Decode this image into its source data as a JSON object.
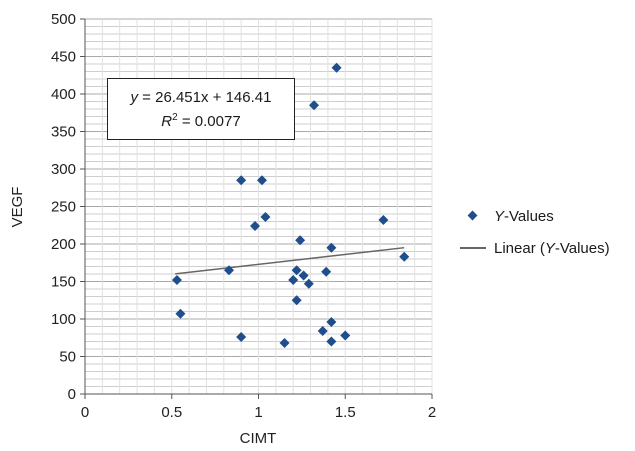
{
  "chart_data": {
    "type": "scatter",
    "xlabel": "CIMT",
    "ylabel": "VEGF",
    "xlim": [
      0,
      2
    ],
    "ylim": [
      0,
      500
    ],
    "x_ticks": [
      "0",
      "0.5",
      "1",
      "1.5",
      "2"
    ],
    "y_ticks": [
      "0",
      "50",
      "100",
      "150",
      "200",
      "250",
      "300",
      "350",
      "400",
      "450",
      "500"
    ],
    "grid": "horizontal",
    "legend_position": "right",
    "series": [
      {
        "name": "Y-Values",
        "marker": "diamond",
        "color": "#1f4e8c",
        "points": [
          {
            "x": 0.53,
            "y": 152
          },
          {
            "x": 0.55,
            "y": 107
          },
          {
            "x": 0.83,
            "y": 165
          },
          {
            "x": 0.9,
            "y": 285
          },
          {
            "x": 0.9,
            "y": 76
          },
          {
            "x": 0.98,
            "y": 224
          },
          {
            "x": 1.02,
            "y": 285
          },
          {
            "x": 1.04,
            "y": 236
          },
          {
            "x": 1.15,
            "y": 68
          },
          {
            "x": 1.2,
            "y": 152
          },
          {
            "x": 1.22,
            "y": 165
          },
          {
            "x": 1.22,
            "y": 125
          },
          {
            "x": 1.24,
            "y": 205
          },
          {
            "x": 1.26,
            "y": 158
          },
          {
            "x": 1.29,
            "y": 147
          },
          {
            "x": 1.32,
            "y": 385
          },
          {
            "x": 1.37,
            "y": 84
          },
          {
            "x": 1.39,
            "y": 163
          },
          {
            "x": 1.42,
            "y": 195
          },
          {
            "x": 1.42,
            "y": 96
          },
          {
            "x": 1.42,
            "y": 70
          },
          {
            "x": 1.45,
            "y": 435
          },
          {
            "x": 1.5,
            "y": 78
          },
          {
            "x": 1.72,
            "y": 232
          },
          {
            "x": 1.84,
            "y": 183
          }
        ]
      },
      {
        "name": "Linear (Y-Values)",
        "type": "trendline",
        "color": "#666666",
        "slope": 26.451,
        "intercept": 146.41,
        "x_range": [
          0.52,
          1.84
        ]
      }
    ],
    "annotation": {
      "equation_y": "y",
      "equation_rest": " = 26.451x + 146.41",
      "r2_label": "R",
      "r2_sup": "2",
      "r2_value": " = 0.0077"
    },
    "legend": {
      "items": [
        {
          "label_italic": "Y",
          "label_rest": "-Values"
        },
        {
          "label_prefix": "Linear (",
          "label_italic": "Y",
          "label_rest": "-Values)"
        }
      ]
    }
  }
}
